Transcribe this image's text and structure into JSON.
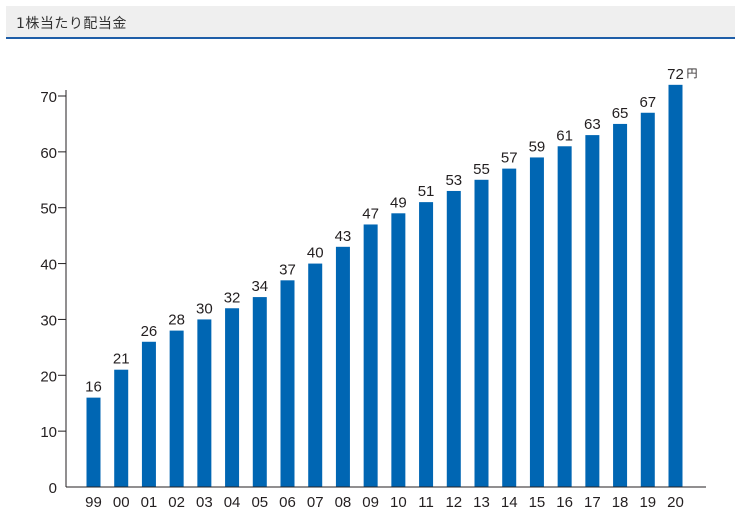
{
  "header": {
    "title": "1株当たり配当金"
  },
  "chart_data": {
    "type": "bar",
    "title": "1株当たり配当金",
    "categories": [
      "99",
      "00",
      "01",
      "02",
      "03",
      "04",
      "05",
      "06",
      "07",
      "08",
      "09",
      "10",
      "11",
      "12",
      "13",
      "14",
      "15",
      "16",
      "17",
      "18",
      "19",
      "20"
    ],
    "values": [
      16,
      21,
      26,
      28,
      30,
      32,
      34,
      37,
      40,
      43,
      47,
      49,
      51,
      53,
      55,
      57,
      59,
      61,
      63,
      65,
      67,
      72
    ],
    "unit": "円",
    "ylim": [
      0,
      70
    ],
    "yticks": [
      "0",
      "10",
      "20",
      "30",
      "40",
      "50",
      "60",
      "70"
    ],
    "bar_color": "#0066b3",
    "grid": false
  }
}
